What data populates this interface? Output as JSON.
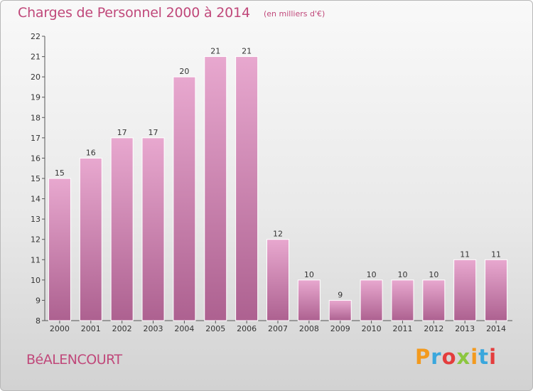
{
  "header": {
    "title": "Charges de Personnel 2000 à 2014",
    "subtitle": "(en milliers d'€)"
  },
  "footer": {
    "commune": "BéALENCOURT",
    "brand": "Proxiti"
  },
  "colors": {
    "title": "#c0487a",
    "bar_top": "#e8a8cf",
    "bar_bottom": "#ad6190",
    "brand_letters": [
      "#f39a1e",
      "#3aa7dd",
      "#e43d3d",
      "#8cc63f",
      "#f39a1e",
      "#3aa7dd",
      "#e43d3d"
    ]
  },
  "chart_data": {
    "type": "bar",
    "categories": [
      "2000",
      "2001",
      "2002",
      "2003",
      "2004",
      "2005",
      "2006",
      "2007",
      "2008",
      "2009",
      "2010",
      "2011",
      "2012",
      "2013",
      "2014"
    ],
    "values": [
      15,
      16,
      17,
      17,
      20,
      21,
      21,
      12,
      10,
      9,
      10,
      10,
      10,
      11,
      11
    ],
    "ylim": [
      8,
      22
    ],
    "yticks": [
      8,
      9,
      10,
      11,
      12,
      13,
      14,
      15,
      16,
      17,
      18,
      19,
      20,
      21,
      22
    ],
    "grid": false,
    "xlabel": "",
    "ylabel": ""
  }
}
